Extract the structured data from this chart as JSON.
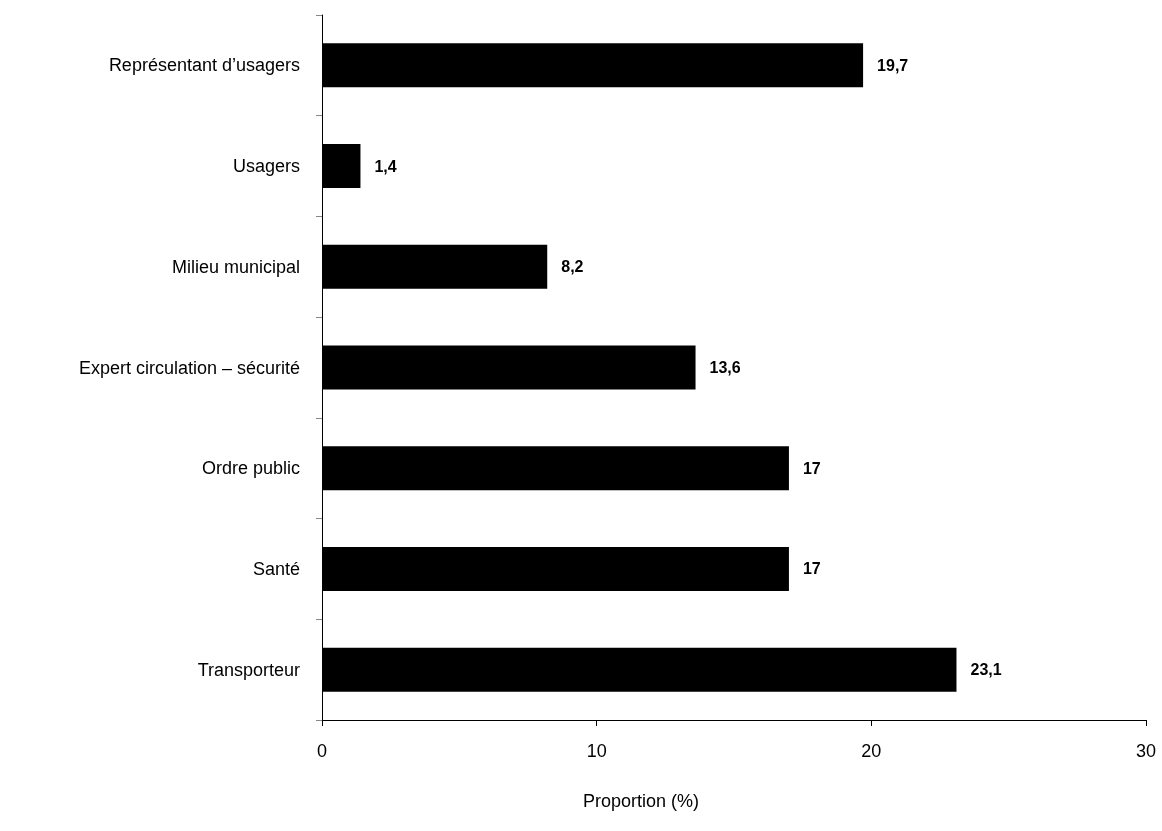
{
  "chart_data": {
    "type": "bar",
    "orientation": "horizontal",
    "categories": [
      "Représentant d’usagers",
      "Usagers",
      "Milieu municipal",
      "Expert circulation – sécurité",
      "Ordre public",
      "Santé",
      "Transporteur"
    ],
    "values": [
      19.7,
      1.4,
      8.2,
      13.6,
      17,
      17,
      23.1
    ],
    "value_labels": [
      "19,7",
      "1,4",
      "8,2",
      "13,6",
      "17",
      "17",
      "23,1"
    ],
    "color": "#000000",
    "xlabel": "Proportion (%)",
    "xlim": [
      0,
      30
    ],
    "xticks": [
      0,
      10,
      20,
      30
    ],
    "grid": false
  }
}
